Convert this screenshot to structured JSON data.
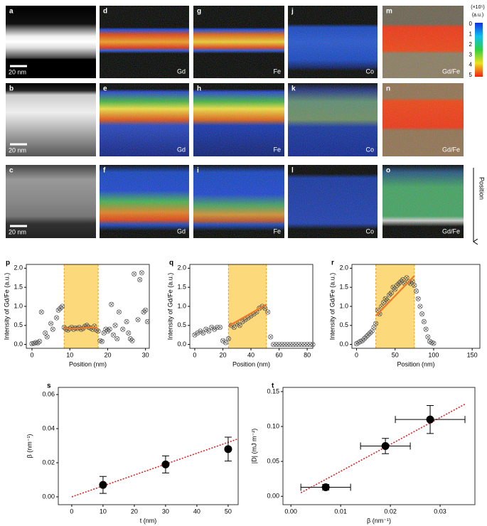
{
  "image_panels": [
    {
      "letter": "a",
      "label": "20 nm"
    },
    {
      "letter": "b",
      "label": "20 nm"
    },
    {
      "letter": "c",
      "label": "20 nm"
    },
    {
      "letter": "d",
      "label": "Gd"
    },
    {
      "letter": "e",
      "label": "Gd"
    },
    {
      "letter": "f",
      "label": "Gd"
    },
    {
      "letter": "g",
      "label": "Fe"
    },
    {
      "letter": "h",
      "label": "Fe"
    },
    {
      "letter": "i",
      "label": "Fe"
    },
    {
      "letter": "j",
      "label": "Co"
    },
    {
      "letter": "k",
      "label": "Co"
    },
    {
      "letter": "l",
      "label": "Co"
    },
    {
      "letter": "m",
      "label": "Gd/Fe"
    },
    {
      "letter": "n",
      "label": "Gd/Fe"
    },
    {
      "letter": "o",
      "label": "Gd/Fe"
    }
  ],
  "colorbar": {
    "scale": "(×10⁵)",
    "unit": "(a.u.)",
    "ticks": [
      0,
      1,
      2,
      3,
      4,
      5
    ]
  },
  "position_label": "Position",
  "chart_data": [
    {
      "type": "scatter",
      "panel": "p",
      "xlabel": "Position (nm)",
      "ylabel": "Intensity of Gd/Fe (a.u.)",
      "xlim": [
        -1.5,
        31
      ],
      "xticks": [
        0,
        10,
        20,
        30
      ],
      "ylim": [
        -0.1,
        2.1
      ],
      "yticks": [
        {
          "value": 0,
          "label": "0.0"
        },
        0.5,
        {
          "value": 1,
          "label": "1.0"
        },
        1.5,
        {
          "value": 2,
          "label": "2.0"
        }
      ],
      "highlight": [
        8.5,
        17.5
      ],
      "color": "#555555",
      "fit_color": "#f07828",
      "highlight_color": "#fcd97a",
      "points": {
        "x": [
          0,
          0.5,
          1,
          1.5,
          2,
          2.5,
          3.5,
          4,
          5,
          5.5,
          6.5,
          7,
          7.5,
          8,
          8.5,
          9,
          9.5,
          10,
          10.5,
          11,
          11.5,
          12,
          12.5,
          13,
          13.5,
          14,
          14.5,
          15,
          15.5,
          16,
          16.5,
          17,
          17.5,
          18,
          18.5,
          19,
          19.5,
          20,
          20.5,
          21,
          21.5,
          22,
          22.5,
          23,
          24,
          25,
          25.5,
          26,
          26.5,
          27,
          28,
          28.5,
          29,
          29.5,
          30,
          30.5
        ],
        "y": [
          0.02,
          0.03,
          0.05,
          0.04,
          0.08,
          0.85,
          0.3,
          0.2,
          0.55,
          0.4,
          0.7,
          0.9,
          0.95,
          1.0,
          0.45,
          0.4,
          0.38,
          0.42,
          0.45,
          0.4,
          0.43,
          0.42,
          0.45,
          0.4,
          0.42,
          0.48,
          0.5,
          0.45,
          0.43,
          0.4,
          0.48,
          0.38,
          0.35,
          0.1,
          0.08,
          0.3,
          0.4,
          0.35,
          0.4,
          1.05,
          0.25,
          0.5,
          0.15,
          0.85,
          0.4,
          0.6,
          0.3,
          0.15,
          0.1,
          1.85,
          0.65,
          1.7,
          1.88,
          0.85,
          0.9,
          0.6
        ]
      },
      "fit": {
        "x": [
          8.5,
          10,
          12,
          14,
          16,
          17.5
        ],
        "y": [
          0.44,
          0.41,
          0.42,
          0.44,
          0.45,
          0.42
        ]
      }
    },
    {
      "type": "scatter",
      "panel": "q",
      "xlabel": "Position (nm)",
      "ylabel": "Intensity of Gd/Fe (a.u.)",
      "xlim": [
        -3.5,
        84
      ],
      "xticks": [
        0,
        20,
        40,
        60,
        80
      ],
      "ylim": [
        -0.1,
        2.1
      ],
      "yticks": [
        {
          "value": 0,
          "label": "0.0"
        },
        0.5,
        {
          "value": 1,
          "label": "1.0"
        },
        1.5,
        {
          "value": 2,
          "label": "2.0"
        }
      ],
      "highlight": [
        24,
        51
      ],
      "color": "#555555",
      "fit_color": "#f07828",
      "highlight_color": "#fcd97a",
      "points": {
        "x": [
          0,
          2,
          4,
          6,
          8,
          10,
          12,
          14,
          16,
          18,
          20,
          22,
          24,
          26,
          28,
          30,
          32,
          34,
          36,
          38,
          40,
          42,
          44,
          46,
          48,
          50,
          52,
          54,
          56,
          58,
          60,
          62,
          64,
          66,
          68,
          70,
          72,
          74,
          76,
          78,
          80,
          82,
          84
        ],
        "y": [
          0.25,
          0.3,
          0.35,
          0.3,
          0.4,
          0.35,
          0.45,
          0.4,
          0.45,
          0.45,
          0.1,
          0.05,
          0.15,
          0.5,
          0.45,
          0.55,
          0.5,
          0.6,
          0.65,
          0.7,
          0.75,
          0.8,
          0.85,
          0.95,
          1.0,
          0.95,
          0.85,
          0.2,
          0,
          0,
          0,
          0,
          0,
          0,
          0,
          0,
          0,
          0,
          0,
          0,
          0,
          0,
          0
        ]
      },
      "fit": {
        "x": [
          24,
          51
        ],
        "y": [
          0.48,
          1.05
        ]
      }
    },
    {
      "type": "scatter",
      "panel": "r",
      "xlabel": "Position (nm)",
      "ylabel": "Intensity of Gd/Fe (a.u.)",
      "xlim": [
        -6,
        160
      ],
      "xticks": [
        0,
        50,
        100,
        150
      ],
      "ylim": [
        -0.1,
        2.1
      ],
      "yticks": [
        {
          "value": 0,
          "label": "0.0"
        },
        0.5,
        {
          "value": 1,
          "label": "1.0"
        },
        1.5,
        {
          "value": 2,
          "label": "2.0"
        }
      ],
      "highlight": [
        25,
        75
      ],
      "color": "#555555",
      "fit_color": "#f07828",
      "highlight_color": "#fcd97a",
      "points": {
        "x": [
          0,
          2.5,
          5,
          7.5,
          10,
          12.5,
          15,
          17.5,
          20,
          22.5,
          25,
          27.5,
          30,
          32.5,
          35,
          37.5,
          40,
          42.5,
          45,
          47.5,
          50,
          52.5,
          55,
          57.5,
          60,
          62.5,
          65,
          67.5,
          70,
          72.5,
          75,
          77.5,
          80,
          82.5,
          85,
          87.5,
          90,
          92.5,
          95,
          97.5,
          100
        ],
        "y": [
          0.02,
          0.05,
          0.08,
          0.1,
          0.15,
          0.2,
          0.25,
          0.3,
          0.35,
          0.45,
          0.55,
          0.9,
          0.8,
          1.0,
          1.1,
          1.2,
          1.15,
          1.3,
          1.35,
          1.5,
          1.45,
          1.55,
          1.6,
          1.65,
          1.7,
          1.6,
          1.75,
          1.65,
          1.6,
          1.65,
          1.55,
          1.4,
          1.2,
          1.0,
          0.8,
          0.6,
          0.4,
          0.2,
          0.08,
          0.05,
          0.03
        ]
      },
      "fit": {
        "x": [
          25,
          75
        ],
        "y": [
          0.75,
          1.8
        ]
      }
    },
    {
      "type": "errorbar",
      "panel": "s",
      "xlabel": "t (nm)",
      "ylabel": "β (nm⁻¹)",
      "xlim": [
        -4.3,
        53.2
      ],
      "xticks": [
        0,
        10,
        20,
        30,
        40,
        50
      ],
      "ylim": [
        -0.0046,
        0.0642
      ],
      "yticks": [
        {
          "value": 0,
          "label": "0.00"
        },
        0.02,
        0.04,
        0.06
      ],
      "color": "#000000",
      "fit_color": "#e02020",
      "x": [
        10,
        30,
        50
      ],
      "values": [
        0.007,
        0.019,
        0.028
      ],
      "errors": [
        0.005,
        0.005,
        0.007
      ],
      "fit": {
        "x": [
          0,
          53
        ],
        "y": [
          0,
          0.0339
        ]
      }
    },
    {
      "type": "errorbar",
      "panel": "t",
      "xlabel": "β (nm⁻¹)",
      "ylabel": "|D| (mJ m⁻²)",
      "xlim": [
        -0.0016,
        0.037
      ],
      "xticks": [
        {
          "value": 0,
          "label": "0.00"
        },
        0.01,
        0.02,
        0.03
      ],
      "ylim": [
        -0.012,
        0.156
      ],
      "yticks": [
        {
          "value": 0,
          "label": "0.00"
        },
        0.05,
        {
          "value": 0.1,
          "label": "0.10"
        },
        0.15
      ],
      "color": "#000000",
      "fit_color": "#e02020",
      "x": [
        0.007,
        0.019,
        0.028
      ],
      "x_errors": [
        0.005,
        0.005,
        0.007
      ],
      "values": [
        0.013,
        0.072,
        0.11
      ],
      "errors": [
        0.004,
        0.011,
        0.02
      ],
      "fit": {
        "x": [
          0.002,
          0.035
        ],
        "y": [
          0.005,
          0.132
        ]
      }
    }
  ]
}
